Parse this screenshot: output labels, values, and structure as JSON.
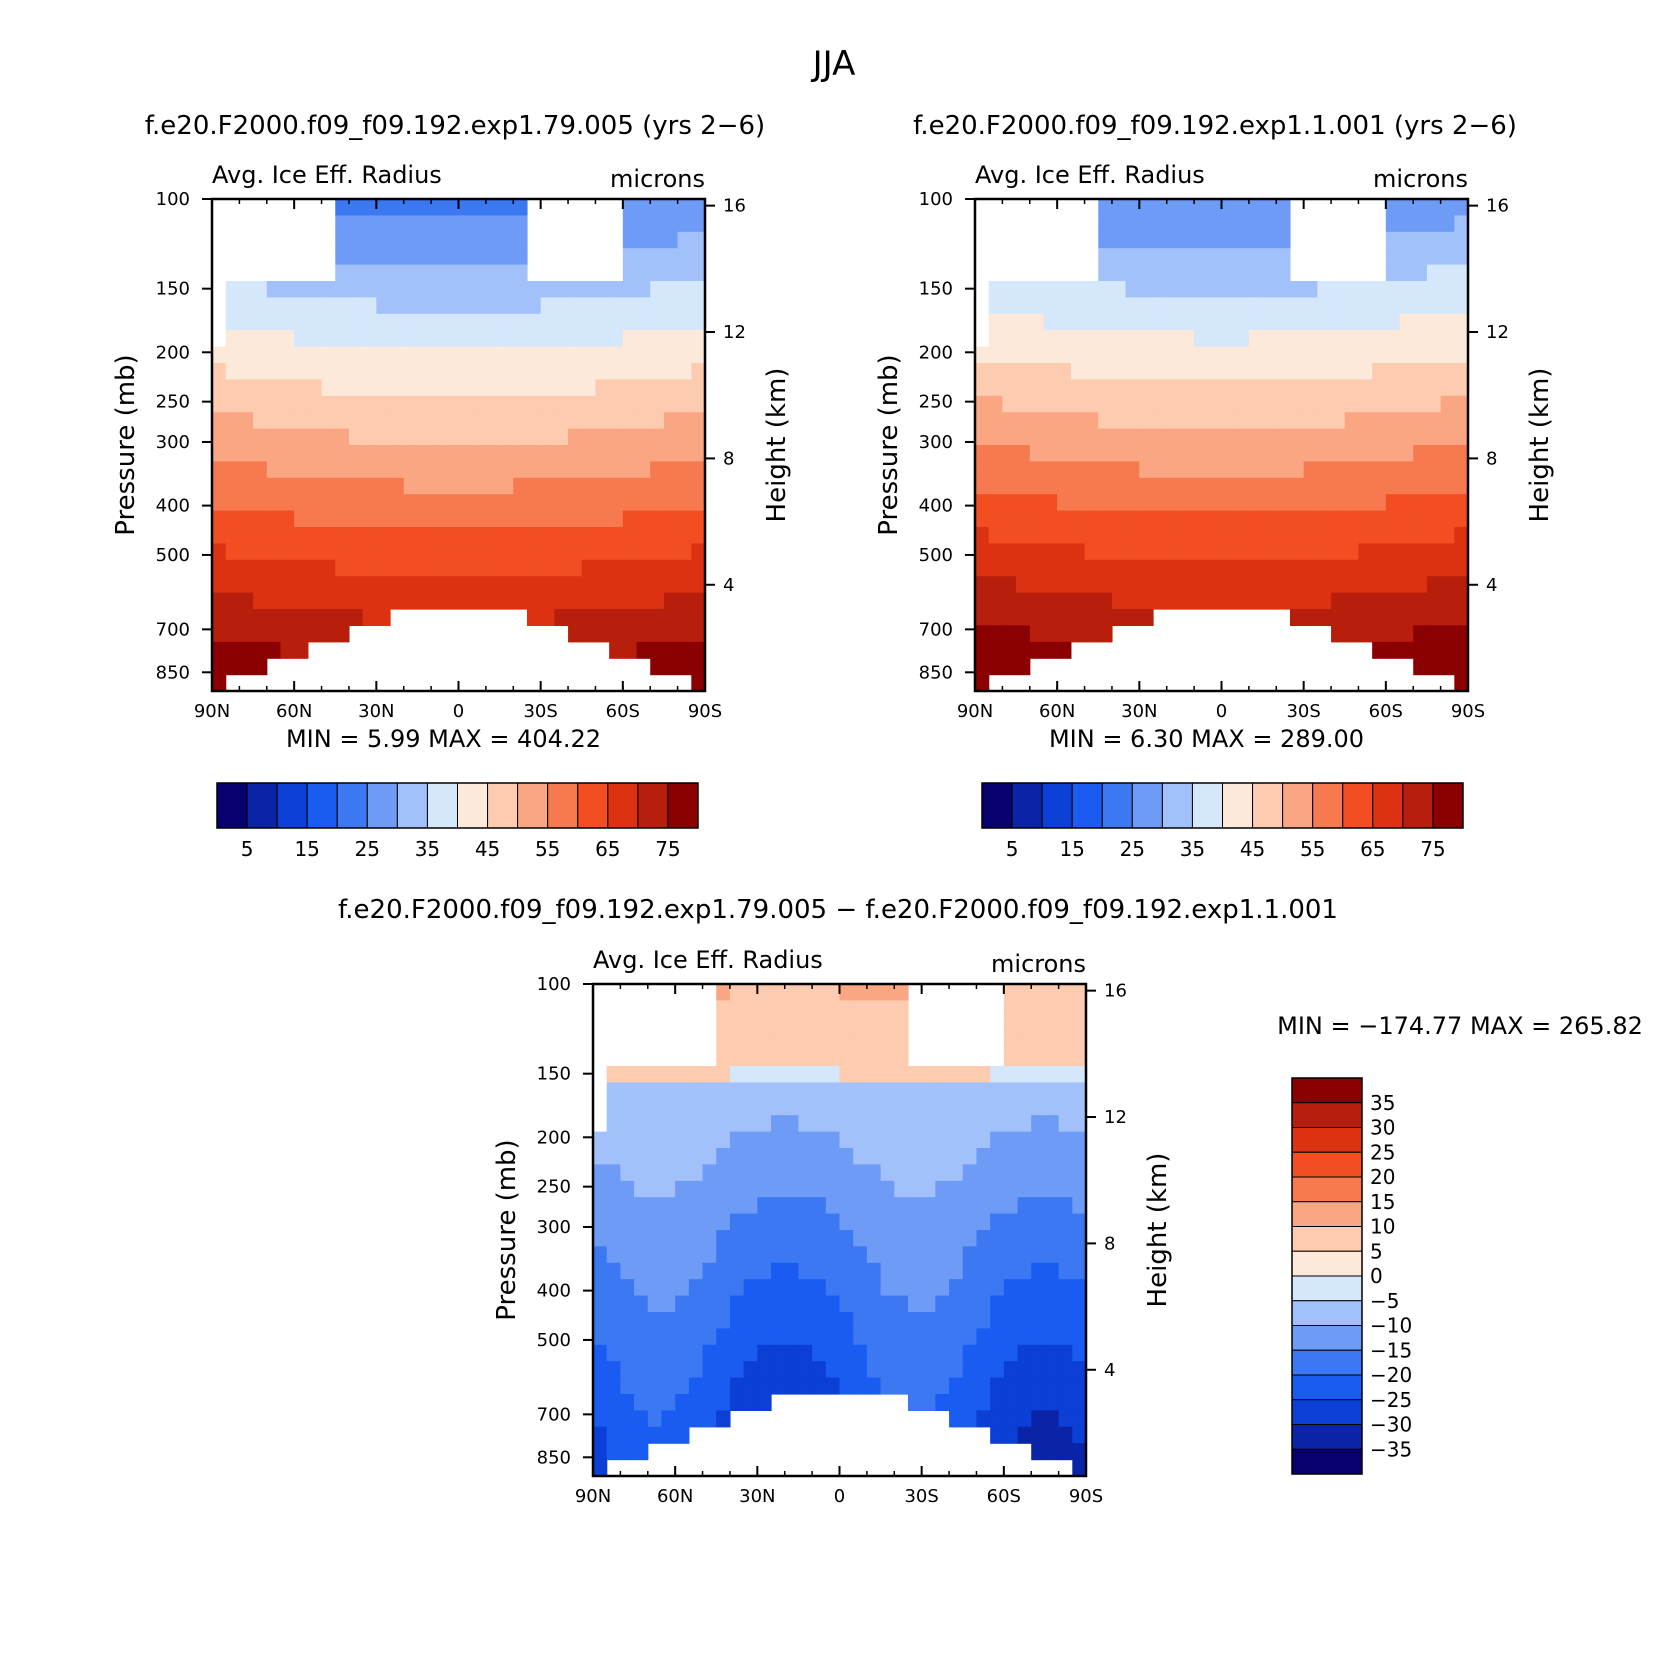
{
  "figure": {
    "season": "JJA",
    "min_label": "MIN",
    "max_label": "MAX",
    "min_eq": "=",
    "max_eq": "="
  },
  "colors": {
    "diverging_scale": [
      "#08006e",
      "#0a24a8",
      "#0c3fd6",
      "#1a5cf2",
      "#3b78f2",
      "#6d9bf5",
      "#a2c1fa",
      "#d4e7fb",
      "#fde9d9",
      "#fdcbb0",
      "#fba683",
      "#f7794f",
      "#f34d22",
      "#dc3212",
      "#b81e0c",
      "#8b0000"
    ]
  },
  "chart_data": [
    {
      "type": "contour",
      "panel": "top-left",
      "run_title": "f.e20.F2000.f09_f09.192.exp1.79.005 (yrs 2−6)",
      "title": "Avg. Ice Eff. Radius",
      "units": "microns",
      "xlabel": "",
      "ylabel": "Pressure (mb)",
      "ylabel_right": "Height (km)",
      "x_ticks": [
        "90N",
        "60N",
        "30N",
        "0",
        "30S",
        "60S",
        "90S"
      ],
      "y_ticks": [
        "100",
        "150",
        "200",
        "250",
        "300",
        "400",
        "500",
        "700",
        "850"
      ],
      "y_ticks_right": [
        "16",
        "12",
        "8",
        "4"
      ],
      "min": "5.99",
      "max": "404.22",
      "colorbar_levels": [
        0,
        5,
        10,
        15,
        20,
        25,
        30,
        35,
        40,
        45,
        50,
        55,
        60,
        65,
        70,
        75
      ],
      "colorbar_labels": [
        "5",
        "15",
        "25",
        "35",
        "45",
        "55",
        "65",
        "75"
      ]
    },
    {
      "type": "contour",
      "panel": "top-right",
      "run_title": "f.e20.F2000.f09_f09.192.exp1.1.001 (yrs 2−6)",
      "title": "Avg. Ice Eff. Radius",
      "units": "microns",
      "xlabel": "",
      "ylabel": "Pressure (mb)",
      "ylabel_right": "Height (km)",
      "x_ticks": [
        "90N",
        "60N",
        "30N",
        "0",
        "30S",
        "60S",
        "90S"
      ],
      "y_ticks": [
        "100",
        "150",
        "200",
        "250",
        "300",
        "400",
        "500",
        "700",
        "850"
      ],
      "y_ticks_right": [
        "16",
        "12",
        "8",
        "4"
      ],
      "min": "6.30",
      "max": "289.00",
      "colorbar_levels": [
        0,
        5,
        10,
        15,
        20,
        25,
        30,
        35,
        40,
        45,
        50,
        55,
        60,
        65,
        70,
        75
      ],
      "colorbar_labels": [
        "5",
        "15",
        "25",
        "35",
        "45",
        "55",
        "65",
        "75"
      ]
    },
    {
      "type": "contour",
      "panel": "bottom",
      "run_title": "f.e20.F2000.f09_f09.192.exp1.79.005 − f.e20.F2000.f09_f09.192.exp1.1.001",
      "title": "Avg. Ice Eff. Radius",
      "units": "microns",
      "xlabel": "",
      "ylabel": "Pressure (mb)",
      "ylabel_right": "Height (km)",
      "x_ticks": [
        "90N",
        "60N",
        "30N",
        "0",
        "30S",
        "60S",
        "90S"
      ],
      "y_ticks": [
        "100",
        "150",
        "200",
        "250",
        "300",
        "400",
        "500",
        "700",
        "850"
      ],
      "y_ticks_right": [
        "16",
        "12",
        "8",
        "4"
      ],
      "min": "−174.77",
      "max": "265.82",
      "colorbar_levels": [
        -35,
        -30,
        -25,
        -20,
        -15,
        -10,
        -5,
        0,
        5,
        10,
        15,
        20,
        25,
        30,
        35
      ],
      "colorbar_labels": [
        "35",
        "30",
        "25",
        "20",
        "15",
        "10",
        "5",
        "0",
        "−5",
        "−10",
        "−15",
        "−20",
        "−25",
        "−30",
        "−35"
      ]
    }
  ]
}
